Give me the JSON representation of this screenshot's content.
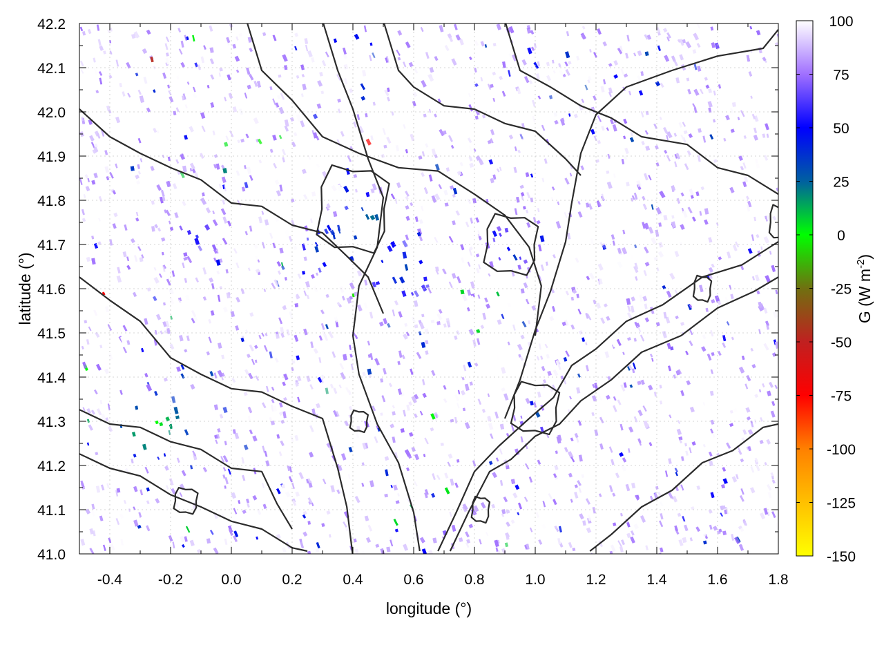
{
  "chart_data": {
    "type": "heatmap",
    "title": "",
    "xlabel": "longitude (°)",
    "ylabel": "latitude (°)",
    "xlim": [
      -0.5,
      1.8
    ],
    "ylim": [
      41.0,
      42.2
    ],
    "x_ticks": [
      -0.4,
      -0.2,
      0.0,
      0.2,
      0.4,
      0.6,
      0.8,
      1.0,
      1.2,
      1.4,
      1.6,
      1.8
    ],
    "x_tick_labels": [
      "-0.4",
      "-0.2",
      "0.0",
      "0.2",
      "0.4",
      "0.6",
      "0.8",
      "1.0",
      "1.2",
      "1.4",
      "1.6",
      "1.8"
    ],
    "y_ticks": [
      41.0,
      41.1,
      41.2,
      41.3,
      41.4,
      41.5,
      41.6,
      41.7,
      41.8,
      41.9,
      42.0,
      42.1,
      42.2
    ],
    "y_tick_labels": [
      "41.0",
      "41.1",
      "41.2",
      "41.3",
      "41.4",
      "41.5",
      "41.6",
      "41.7",
      "41.8",
      "41.9",
      "42.0",
      "42.1",
      "42.2"
    ],
    "grid": true,
    "colorbar": {
      "label_prefix": "G (W m",
      "label_sup": "-2",
      "label_suffix": ")",
      "range": [
        -150,
        100
      ],
      "ticks": [
        100,
        75,
        50,
        25,
        0,
        -25,
        -50,
        -75,
        -100,
        -125,
        -150
      ],
      "tick_labels": [
        "100",
        "75",
        "50",
        "25",
        "0",
        "-25",
        "-50",
        "-75",
        "-100",
        "-125",
        "-150"
      ],
      "colors": [
        {
          "value": -150,
          "color": "#ffff00"
        },
        {
          "value": -125,
          "color": "#ffc000"
        },
        {
          "value": -100,
          "color": "#ff8000"
        },
        {
          "value": -75,
          "color": "#ff0000"
        },
        {
          "value": -50,
          "color": "#c02020"
        },
        {
          "value": -25,
          "color": "#707010"
        },
        {
          "value": 0,
          "color": "#00ff00"
        },
        {
          "value": 25,
          "color": "#0060a0"
        },
        {
          "value": 50,
          "color": "#0000ff"
        },
        {
          "value": 75,
          "color": "#a070ff"
        },
        {
          "value": 100,
          "color": "#ffffff"
        }
      ]
    },
    "contour_lines": [
      {
        "name": "coast",
        "points": [
          [
            1.18,
            41.0
          ],
          [
            1.25,
            41.05
          ],
          [
            1.35,
            41.1
          ],
          [
            1.45,
            41.15
          ],
          [
            1.55,
            41.2
          ],
          [
            1.65,
            41.24
          ],
          [
            1.75,
            41.28
          ],
          [
            1.8,
            41.3
          ]
        ]
      },
      {
        "name": "ridge-south-1",
        "points": [
          [
            0.72,
            41.0
          ],
          [
            0.78,
            41.1
          ],
          [
            0.85,
            41.18
          ],
          [
            0.92,
            41.22
          ],
          [
            1.0,
            41.26
          ],
          [
            1.08,
            41.3
          ],
          [
            1.15,
            41.34
          ],
          [
            1.25,
            41.4
          ],
          [
            1.35,
            41.45
          ],
          [
            1.48,
            41.5
          ],
          [
            1.6,
            41.55
          ],
          [
            1.72,
            41.6
          ],
          [
            1.8,
            41.62
          ]
        ]
      },
      {
        "name": "ridge-south-2",
        "points": [
          [
            0.68,
            41.0
          ],
          [
            0.74,
            41.1
          ],
          [
            0.8,
            41.18
          ],
          [
            0.88,
            41.25
          ],
          [
            0.98,
            41.3
          ],
          [
            1.06,
            41.36
          ],
          [
            1.12,
            41.42
          ],
          [
            1.2,
            41.47
          ],
          [
            1.3,
            41.52
          ],
          [
            1.42,
            41.57
          ],
          [
            1.55,
            41.62
          ],
          [
            1.68,
            41.66
          ],
          [
            1.8,
            41.7
          ]
        ]
      },
      {
        "name": "valley-west",
        "points": [
          [
            0.62,
            41.0
          ],
          [
            0.6,
            41.1
          ],
          [
            0.55,
            41.2
          ],
          [
            0.48,
            41.3
          ],
          [
            0.42,
            41.4
          ],
          [
            0.4,
            41.5
          ],
          [
            0.42,
            41.6
          ],
          [
            0.48,
            41.7
          ],
          [
            0.5,
            41.8
          ],
          [
            0.45,
            41.9
          ],
          [
            0.4,
            42.0
          ],
          [
            0.35,
            42.1
          ],
          [
            0.3,
            42.2
          ]
        ]
      },
      {
        "name": "valley-east",
        "points": [
          [
            0.9,
            41.3
          ],
          [
            0.95,
            41.4
          ],
          [
            1.0,
            41.5
          ],
          [
            1.05,
            41.6
          ],
          [
            1.1,
            41.7
          ],
          [
            1.12,
            41.8
          ],
          [
            1.15,
            41.9
          ],
          [
            1.2,
            42.0
          ],
          [
            1.3,
            42.05
          ],
          [
            1.45,
            42.1
          ],
          [
            1.6,
            42.12
          ],
          [
            1.75,
            42.15
          ],
          [
            1.8,
            42.18
          ]
        ]
      },
      {
        "name": "basin-north",
        "points": [
          [
            0.05,
            42.2
          ],
          [
            0.1,
            42.1
          ],
          [
            0.2,
            42.02
          ],
          [
            0.3,
            41.95
          ],
          [
            0.42,
            41.9
          ],
          [
            0.55,
            41.88
          ],
          [
            0.68,
            41.86
          ],
          [
            0.8,
            41.82
          ],
          [
            0.9,
            41.76
          ],
          [
            0.98,
            41.7
          ],
          [
            1.02,
            41.6
          ],
          [
            1.0,
            41.5
          ]
        ]
      },
      {
        "name": "basin-west",
        "points": [
          [
            -0.5,
            41.62
          ],
          [
            -0.4,
            41.58
          ],
          [
            -0.3,
            41.52
          ],
          [
            -0.2,
            41.45
          ],
          [
            -0.1,
            41.4
          ],
          [
            0.0,
            41.38
          ],
          [
            0.1,
            41.36
          ],
          [
            0.2,
            41.34
          ],
          [
            0.3,
            41.3
          ],
          [
            0.35,
            41.2
          ],
          [
            0.38,
            41.1
          ],
          [
            0.4,
            41.0
          ]
        ]
      },
      {
        "name": "pyrenees-foot",
        "points": [
          [
            -0.5,
            42.0
          ],
          [
            -0.4,
            41.95
          ],
          [
            -0.3,
            41.9
          ],
          [
            -0.2,
            41.88
          ],
          [
            -0.1,
            41.84
          ],
          [
            0.0,
            41.8
          ],
          [
            0.1,
            41.78
          ],
          [
            0.2,
            41.75
          ],
          [
            0.3,
            41.72
          ],
          [
            0.38,
            41.68
          ],
          [
            0.45,
            41.62
          ],
          [
            0.5,
            41.55
          ]
        ]
      },
      {
        "name": "southwest",
        "points": [
          [
            -0.5,
            41.22
          ],
          [
            -0.4,
            41.2
          ],
          [
            -0.3,
            41.17
          ],
          [
            -0.2,
            41.14
          ],
          [
            -0.1,
            41.1
          ],
          [
            0.0,
            41.08
          ],
          [
            0.1,
            41.05
          ],
          [
            0.2,
            41.02
          ],
          [
            0.25,
            41.0
          ]
        ]
      },
      {
        "name": "southwest-2",
        "points": [
          [
            -0.5,
            41.32
          ],
          [
            -0.4,
            41.3
          ],
          [
            -0.3,
            41.28
          ],
          [
            -0.2,
            41.26
          ],
          [
            -0.1,
            41.23
          ],
          [
            0.0,
            41.2
          ],
          [
            0.1,
            41.18
          ],
          [
            0.15,
            41.12
          ],
          [
            0.2,
            41.05
          ]
        ]
      },
      {
        "name": "north-east-hills",
        "points": [
          [
            0.9,
            42.2
          ],
          [
            0.95,
            42.1
          ],
          [
            1.05,
            42.05
          ],
          [
            1.15,
            42.02
          ],
          [
            1.25,
            41.98
          ],
          [
            1.35,
            41.95
          ],
          [
            1.5,
            41.92
          ],
          [
            1.6,
            41.88
          ],
          [
            1.7,
            41.85
          ],
          [
            1.8,
            41.82
          ]
        ]
      },
      {
        "name": "north-hills",
        "points": [
          [
            0.5,
            42.2
          ],
          [
            0.55,
            42.1
          ],
          [
            0.6,
            42.05
          ],
          [
            0.7,
            42.02
          ],
          [
            0.8,
            42.0
          ],
          [
            0.9,
            41.98
          ],
          [
            1.0,
            41.95
          ],
          [
            1.1,
            41.9
          ],
          [
            1.15,
            41.85
          ]
        ]
      }
    ],
    "contour_loops": [
      {
        "name": "loop-1",
        "cx": 0.92,
        "cy": 41.7,
        "rx": 0.09,
        "ry": 0.07
      },
      {
        "name": "loop-2",
        "cx": 1.0,
        "cy": 41.33,
        "rx": 0.08,
        "ry": 0.06
      },
      {
        "name": "loop-3",
        "cx": 0.4,
        "cy": 41.78,
        "rx": 0.12,
        "ry": 0.1
      },
      {
        "name": "loop-4",
        "cx": -0.15,
        "cy": 41.12,
        "rx": 0.04,
        "ry": 0.03
      },
      {
        "name": "loop-5",
        "cx": 0.42,
        "cy": 41.3,
        "rx": 0.03,
        "ry": 0.025
      },
      {
        "name": "loop-6",
        "cx": 1.55,
        "cy": 41.6,
        "rx": 0.03,
        "ry": 0.03
      },
      {
        "name": "loop-7",
        "cx": 0.82,
        "cy": 41.1,
        "rx": 0.03,
        "ry": 0.03
      },
      {
        "name": "loop-8",
        "cx": 1.8,
        "cy": 41.75,
        "rx": 0.03,
        "ry": 0.04
      }
    ],
    "hotspots": [
      {
        "x": 0.92,
        "y": 41.7,
        "value": 45
      },
      {
        "x": 1.0,
        "y": 41.3,
        "value": 55
      },
      {
        "x": 0.8,
        "y": 41.15,
        "value": 60
      },
      {
        "x": -0.28,
        "y": 41.28,
        "value": 10
      },
      {
        "x": -0.25,
        "y": 41.3,
        "value": 0
      },
      {
        "x": -0.12,
        "y": 41.72,
        "value": 50
      },
      {
        "x": 0.35,
        "y": 41.7,
        "value": 20
      },
      {
        "x": 0.45,
        "y": 41.75,
        "value": 15
      },
      {
        "x": 0.55,
        "y": 41.65,
        "value": 25
      },
      {
        "x": 1.6,
        "y": 42.15,
        "value": 70
      },
      {
        "x": 1.7,
        "y": 42.18,
        "value": 65
      },
      {
        "x": 1.45,
        "y": 41.45,
        "value": 60
      },
      {
        "x": 0.7,
        "y": 41.05,
        "value": 70
      }
    ]
  }
}
